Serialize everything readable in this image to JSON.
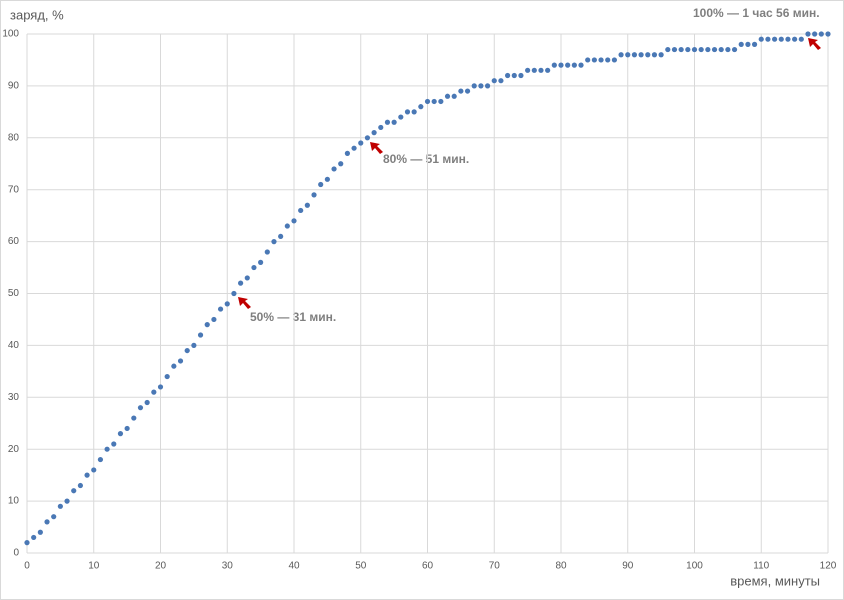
{
  "chart_data": {
    "type": "scatter",
    "ylabel": "заряд, %",
    "xlabel": "время, минуты",
    "annotations": [
      "50% — 31 мин.",
      "80% — 51 мин.",
      "100% — 1 час 56 мин."
    ],
    "x": [
      0,
      1,
      2,
      3,
      4,
      5,
      6,
      7,
      8,
      9,
      10,
      11,
      12,
      13,
      14,
      15,
      16,
      17,
      18,
      19,
      20,
      21,
      22,
      23,
      24,
      25,
      26,
      27,
      28,
      29,
      30,
      31,
      32,
      33,
      34,
      35,
      36,
      37,
      38,
      39,
      40,
      41,
      42,
      43,
      44,
      45,
      46,
      47,
      48,
      49,
      50,
      51,
      52,
      53,
      54,
      55,
      56,
      57,
      58,
      59,
      60,
      61,
      62,
      63,
      64,
      65,
      66,
      67,
      68,
      69,
      70,
      71,
      72,
      73,
      74,
      75,
      76,
      77,
      78,
      79,
      80,
      81,
      82,
      83,
      84,
      85,
      86,
      87,
      88,
      89,
      90,
      91,
      92,
      93,
      94,
      95,
      96,
      97,
      98,
      99,
      100,
      101,
      102,
      103,
      104,
      105,
      106,
      107,
      108,
      109,
      110,
      111,
      112,
      113,
      114,
      115,
      116,
      117,
      118,
      119,
      120
    ],
    "values": [
      2,
      3,
      4,
      6,
      7,
      9,
      10,
      12,
      13,
      15,
      16,
      18,
      20,
      21,
      23,
      24,
      26,
      28,
      29,
      31,
      32,
      34,
      36,
      37,
      39,
      40,
      42,
      44,
      45,
      47,
      48,
      50,
      52,
      53,
      55,
      56,
      58,
      60,
      61,
      63,
      64,
      66,
      67,
      69,
      71,
      72,
      74,
      75,
      77,
      78,
      79,
      80,
      81,
      82,
      83,
      83,
      84,
      85,
      85,
      86,
      87,
      87,
      87,
      88,
      88,
      89,
      89,
      90,
      90,
      90,
      91,
      91,
      92,
      92,
      92,
      93,
      93,
      93,
      93,
      94,
      94,
      94,
      94,
      94,
      95,
      95,
      95,
      95,
      95,
      96,
      96,
      96,
      96,
      96,
      96,
      96,
      97,
      97,
      97,
      97,
      97,
      97,
      97,
      97,
      97,
      97,
      97,
      98,
      98,
      98,
      99,
      99,
      99,
      99,
      99,
      99,
      99,
      100,
      100,
      100,
      100
    ],
    "color": "#4a78b5",
    "xlim": [
      0,
      120
    ],
    "xticks": [
      0,
      10,
      20,
      30,
      40,
      50,
      60,
      70,
      80,
      90,
      100,
      110,
      120
    ],
    "ylim": [
      0,
      100
    ],
    "yticks": [
      0,
      10,
      20,
      30,
      40,
      50,
      60,
      70,
      80,
      90,
      100
    ],
    "grid": true
  }
}
